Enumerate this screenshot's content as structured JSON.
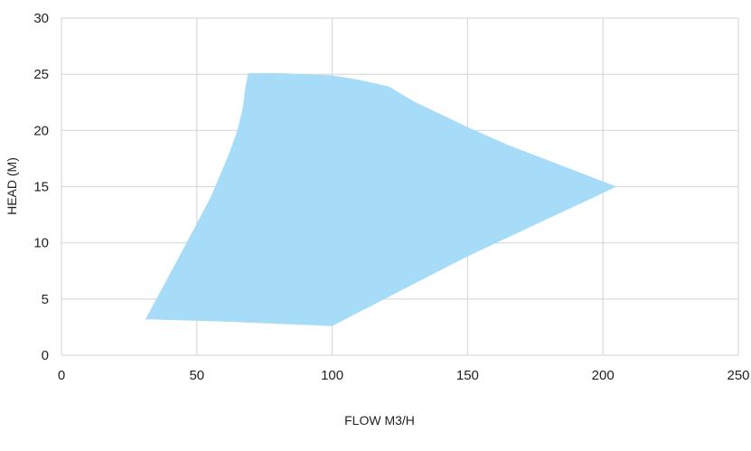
{
  "chart_data": {
    "type": "area",
    "title": "",
    "xlabel": "FLOW M3/H",
    "ylabel": "HEAD (M)",
    "xlim": [
      0,
      250
    ],
    "ylim": [
      0,
      30
    ],
    "xticks": [
      "0",
      "50",
      "100",
      "150",
      "200",
      "250"
    ],
    "yticks": [
      "0",
      "5",
      "10",
      "15",
      "20",
      "25",
      "30"
    ],
    "grid": true,
    "legend": "none",
    "fill_color": "#a6dcf7",
    "grid_color": "#d9d9d9",
    "region": {
      "x": [
        31,
        44,
        55,
        62,
        65,
        67,
        68,
        69,
        80,
        100,
        110,
        121,
        130,
        150,
        165,
        205,
        150,
        100,
        80,
        60,
        31
      ],
      "y": [
        3.2,
        9,
        14,
        18,
        20,
        22,
        24,
        25.1,
        25.1,
        24.9,
        24.5,
        23.9,
        22.6,
        20.3,
        18.7,
        15,
        8.8,
        2.6,
        2.8,
        3.0,
        3.2
      ]
    }
  }
}
